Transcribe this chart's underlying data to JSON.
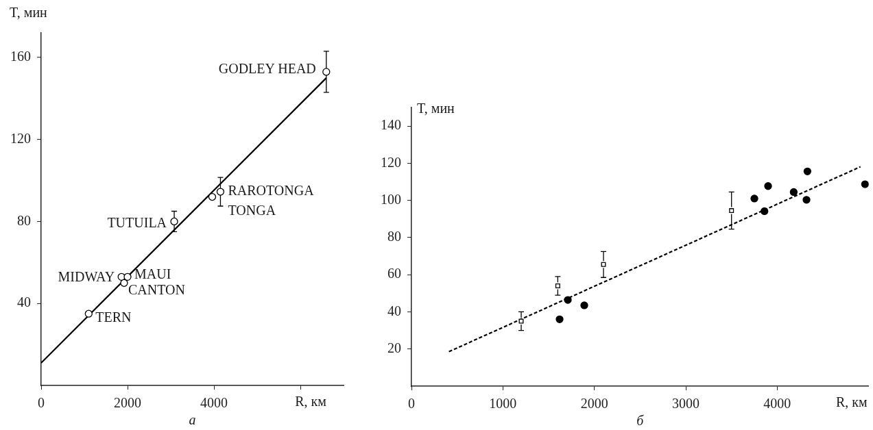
{
  "chart_data": [
    {
      "type": "scatter",
      "xlabel": "R, км",
      "ylabel": "T, мин",
      "xlim": [
        0,
        7000
      ],
      "ylim": [
        0,
        172
      ],
      "xticks": [
        0,
        2000,
        4000,
        {
          "value": 6000,
          "label": null
        }
      ],
      "yticks": [
        40,
        80,
        120,
        160
      ],
      "series": [
        {
          "type": "scatter",
          "color": "#000000",
          "marker": "circle",
          "x": [
            6600,
            4150,
            3960,
            3080,
            1860,
            2000,
            1920,
            1100
          ],
          "values": [
            153,
            94.5,
            92,
            80,
            53,
            53,
            50,
            35
          ],
          "errors": [
            10,
            7,
            null,
            5,
            null,
            null,
            null,
            null
          ]
        },
        {
          "type": "line",
          "color": "#000000",
          "line_style": "solid",
          "marker": "none",
          "x": [
            0,
            6600
          ],
          "values": [
            11,
            150
          ]
        }
      ],
      "annotations": [
        {
          "text": "GODLEY HEAD",
          "x": 6600,
          "y": 153
        },
        {
          "text": "RAROTONGA",
          "x": 4150,
          "y": 94.5
        },
        {
          "text": "TONGA",
          "x": 3960,
          "y": 92
        },
        {
          "text": "TUTUILA",
          "x": 3080,
          "y": 80
        },
        {
          "text": "MIDWAY",
          "x": 1860,
          "y": 53
        },
        {
          "text": "MAUI",
          "x": 2000,
          "y": 53
        },
        {
          "text": "CANTON",
          "x": 1920,
          "y": 50
        },
        {
          "text": "TERN",
          "x": 1100,
          "y": 35
        },
        "а"
      ]
    },
    {
      "type": "scatter",
      "xlabel": "R, км",
      "ylabel": "T, мин",
      "xlim": [
        0,
        5000
      ],
      "ylim": [
        0,
        150
      ],
      "xticks": [
        0,
        1000,
        2000,
        3000,
        4000
      ],
      "yticks": [
        20,
        40,
        60,
        80,
        100,
        120,
        140
      ],
      "series": [
        {
          "type": "scatter",
          "color": "#000000",
          "marker": "square",
          "x": [
            1200,
            1600,
            2100,
            3500
          ],
          "values": [
            35,
            54,
            65.5,
            94.5
          ],
          "errors": [
            5,
            5,
            7,
            10
          ]
        },
        {
          "type": "scatter",
          "color": "#000000",
          "marker": "circle",
          "x": [
            1620,
            1710,
            1890,
            3750,
            3860,
            3900,
            4180,
            4320,
            4330,
            4960
          ],
          "values": [
            36,
            46.4,
            43.5,
            101,
            94.2,
            107.7,
            104.5,
            100.3,
            115.6,
            108.7
          ]
        },
        {
          "type": "line",
          "color": "#000000",
          "line_style": "dashed",
          "marker": "none",
          "x": [
            410,
            4910
          ],
          "values": [
            18.6,
            118.1
          ]
        }
      ],
      "annotations": [
        "б"
      ]
    }
  ]
}
